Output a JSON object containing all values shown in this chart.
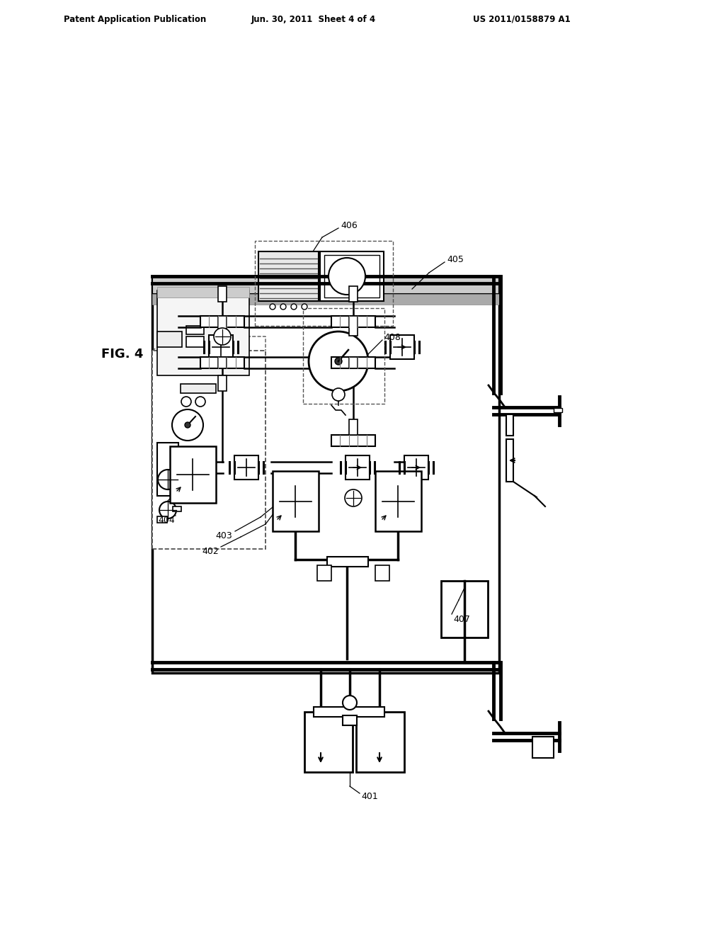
{
  "bg_color": "#ffffff",
  "header_left": "Patent Application Publication",
  "header_center": "Jun. 30, 2011  Sheet 4 of 4",
  "header_right": "US 2011/0158879 A1",
  "fig_label": "FIG. 4"
}
